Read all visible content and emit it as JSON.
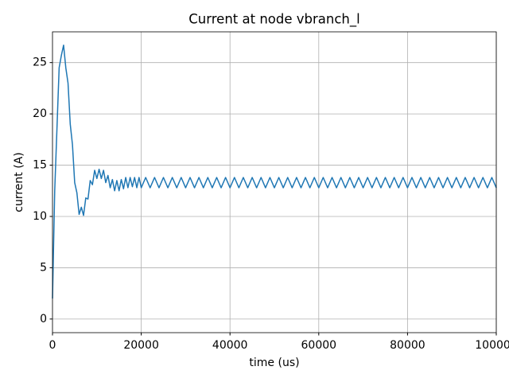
{
  "chart_data": {
    "type": "line",
    "title": "Current at node vbranch_l",
    "x_label": "time (us)",
    "y_label": "current (A)",
    "x": [
      0,
      500,
      1000,
      1500,
      2000,
      2500,
      3000,
      3500,
      4000,
      4500,
      5000,
      5500,
      6000,
      6500,
      7000,
      7500,
      8000,
      8500,
      9000,
      9500,
      10000,
      10500,
      11000,
      11500,
      12000,
      12500,
      13000,
      13500,
      14000,
      14500,
      15000,
      15500,
      16000,
      16500,
      17000,
      17500,
      18000,
      18500,
      19000,
      19500,
      20000,
      21000,
      22000,
      23000,
      24000,
      25000,
      26000,
      27000,
      28000,
      29000,
      30000,
      31000,
      32000,
      33000,
      34000,
      35000,
      36000,
      37000,
      38000,
      39000,
      40000,
      41000,
      42000,
      43000,
      44000,
      45000,
      46000,
      47000,
      48000,
      49000,
      50000,
      51000,
      52000,
      53000,
      54000,
      55000,
      56000,
      57000,
      58000,
      59000,
      60000,
      61000,
      62000,
      63000,
      64000,
      65000,
      66000,
      67000,
      68000,
      69000,
      70000,
      71000,
      72000,
      73000,
      74000,
      75000,
      76000,
      77000,
      78000,
      79000,
      80000,
      81000,
      82000,
      83000,
      84000,
      85000,
      86000,
      87000,
      88000,
      89000,
      90000,
      91000,
      92000,
      93000,
      94000,
      95000,
      96000,
      97000,
      98000,
      99000,
      100000
    ],
    "series": [
      {
        "color": "#1f77b4",
        "values": [
          2,
          12.5,
          18.5,
          24.5,
          25.7,
          26.7,
          24.5,
          23.0,
          19.0,
          17.0,
          13.3,
          12.3,
          10.2,
          10.9,
          10.1,
          11.8,
          11.7,
          13.5,
          13.1,
          14.5,
          13.7,
          14.6,
          13.7,
          14.5,
          13.3,
          14.0,
          12.8,
          13.6,
          12.5,
          13.5,
          12.5,
          13.6,
          12.7,
          13.8,
          12.8,
          13.8,
          12.9,
          13.8,
          12.8,
          13.8,
          12.8,
          13.8,
          12.8,
          13.8,
          12.8,
          13.8,
          12.8,
          13.8,
          12.8,
          13.8,
          12.8,
          13.8,
          12.8,
          13.8,
          12.8,
          13.8,
          12.8,
          13.8,
          12.8,
          13.8,
          12.8,
          13.8,
          12.8,
          13.8,
          12.8,
          13.8,
          12.8,
          13.8,
          12.8,
          13.8,
          12.8,
          13.8,
          12.8,
          13.8,
          12.8,
          13.8,
          12.8,
          13.8,
          12.8,
          13.8,
          12.8,
          13.8,
          12.8,
          13.8,
          12.8,
          13.8,
          12.8,
          13.8,
          12.8,
          13.8,
          12.8,
          13.8,
          12.8,
          13.8,
          12.8,
          13.8,
          12.8,
          13.8,
          12.8,
          13.8,
          12.8,
          13.8,
          12.8,
          13.8,
          12.8,
          13.8,
          12.8,
          13.8,
          12.8,
          13.8,
          12.8,
          13.8,
          12.8,
          13.8,
          12.8,
          13.8,
          12.8,
          13.8,
          12.8,
          13.8,
          12.8
        ]
      }
    ],
    "xlim": [
      0,
      100000
    ],
    "xticks": [
      0,
      20000,
      40000,
      60000,
      80000,
      100000
    ],
    "ylim": [
      -1.33,
      28.0
    ],
    "yticks": [
      0,
      5,
      10,
      15,
      20,
      25
    ],
    "grid": true
  }
}
